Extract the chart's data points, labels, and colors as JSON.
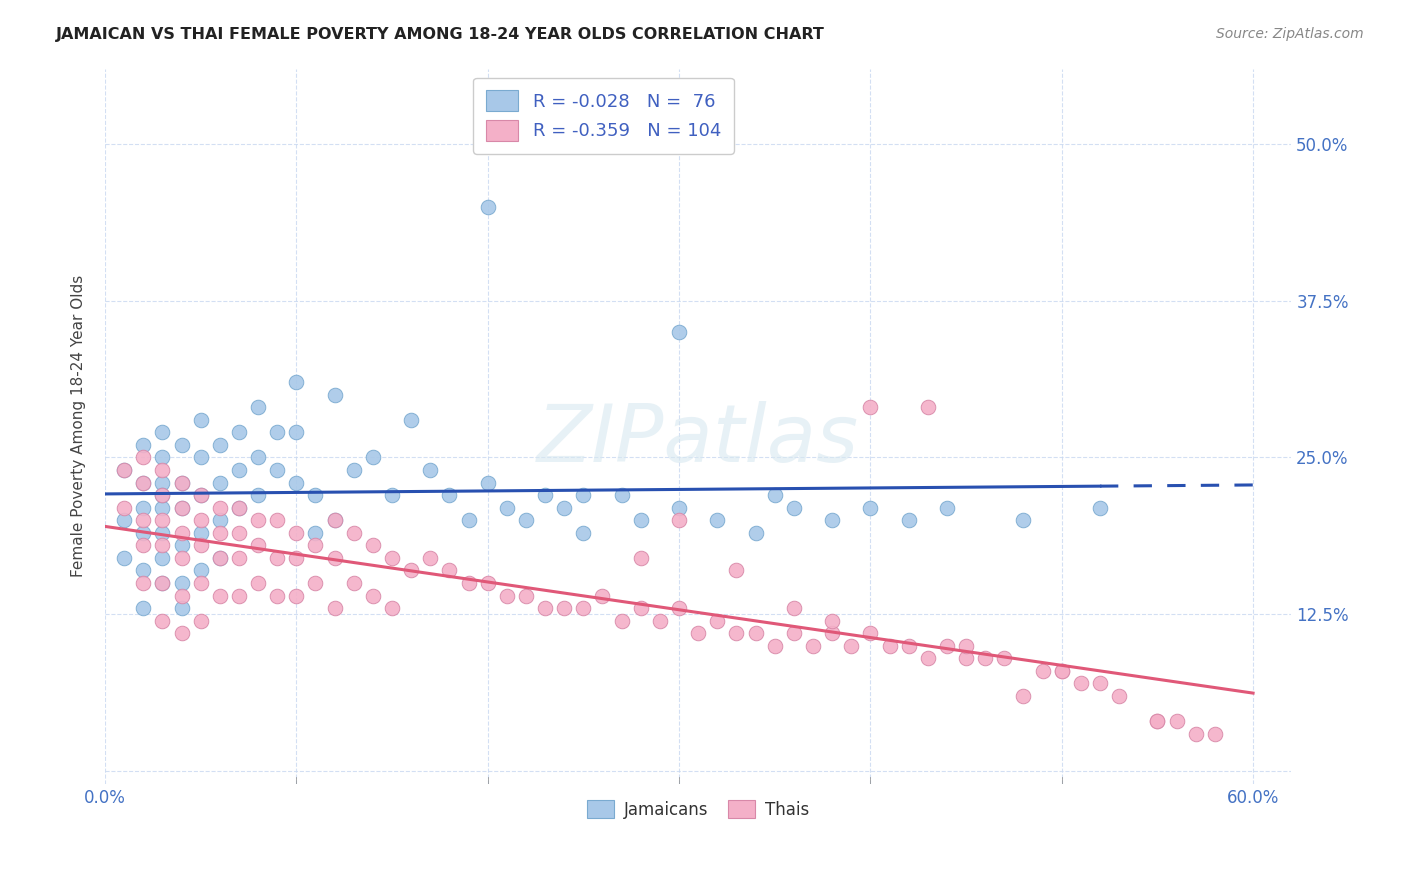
{
  "title": "JAMAICAN VS THAI FEMALE POVERTY AMONG 18-24 YEAR OLDS CORRELATION CHART",
  "source": "Source: ZipAtlas.com",
  "ylabel": "Female Poverty Among 18-24 Year Olds",
  "ytick_labels": [
    "",
    "12.5%",
    "25.0%",
    "37.5%",
    "50.0%"
  ],
  "ytick_values": [
    0.0,
    0.125,
    0.25,
    0.375,
    0.5
  ],
  "xtick_positions": [
    0.0,
    0.1,
    0.2,
    0.3,
    0.4,
    0.5,
    0.6
  ],
  "xtick_labels_show": [
    "0.0%",
    "",
    "",
    "",
    "",
    "",
    "60.0%"
  ],
  "xlim": [
    0.0,
    0.62
  ],
  "ylim": [
    -0.01,
    0.56
  ],
  "jamaican_color": "#a8c8e8",
  "jamaican_edge": "#7aaad0",
  "thai_color": "#f4b0c8",
  "thai_edge": "#d888a8",
  "trend_jamaican_color": "#2850b0",
  "trend_thai_color": "#e05878",
  "watermark": "ZIPatlas",
  "legend1_label": "R = -0.028   N =  76",
  "legend2_label": "R = -0.359   N = 104",
  "legend_bot1": "Jamaicans",
  "legend_bot2": "Thais",
  "jamaican_x": [
    0.01,
    0.01,
    0.01,
    0.02,
    0.02,
    0.02,
    0.02,
    0.02,
    0.02,
    0.03,
    0.03,
    0.03,
    0.03,
    0.03,
    0.03,
    0.03,
    0.03,
    0.04,
    0.04,
    0.04,
    0.04,
    0.04,
    0.04,
    0.05,
    0.05,
    0.05,
    0.05,
    0.05,
    0.06,
    0.06,
    0.06,
    0.06,
    0.07,
    0.07,
    0.07,
    0.08,
    0.08,
    0.08,
    0.09,
    0.09,
    0.1,
    0.1,
    0.1,
    0.11,
    0.11,
    0.12,
    0.12,
    0.13,
    0.14,
    0.15,
    0.16,
    0.17,
    0.18,
    0.19,
    0.2,
    0.21,
    0.22,
    0.23,
    0.24,
    0.25,
    0.27,
    0.28,
    0.3,
    0.32,
    0.34,
    0.36,
    0.38,
    0.4,
    0.42,
    0.44,
    0.48,
    0.52,
    0.3,
    0.35,
    0.2,
    0.25
  ],
  "jamaican_y": [
    0.24,
    0.2,
    0.17,
    0.26,
    0.23,
    0.21,
    0.19,
    0.16,
    0.13,
    0.27,
    0.25,
    0.23,
    0.21,
    0.19,
    0.17,
    0.15,
    0.22,
    0.26,
    0.23,
    0.21,
    0.18,
    0.15,
    0.13,
    0.28,
    0.25,
    0.22,
    0.19,
    0.16,
    0.26,
    0.23,
    0.2,
    0.17,
    0.27,
    0.24,
    0.21,
    0.29,
    0.25,
    0.22,
    0.27,
    0.24,
    0.31,
    0.27,
    0.23,
    0.22,
    0.19,
    0.3,
    0.2,
    0.24,
    0.25,
    0.22,
    0.28,
    0.24,
    0.22,
    0.2,
    0.23,
    0.21,
    0.2,
    0.22,
    0.21,
    0.19,
    0.22,
    0.2,
    0.21,
    0.2,
    0.19,
    0.21,
    0.2,
    0.21,
    0.2,
    0.21,
    0.2,
    0.21,
    0.35,
    0.22,
    0.45,
    0.22
  ],
  "thai_x": [
    0.01,
    0.01,
    0.02,
    0.02,
    0.02,
    0.02,
    0.02,
    0.03,
    0.03,
    0.03,
    0.03,
    0.03,
    0.03,
    0.04,
    0.04,
    0.04,
    0.04,
    0.04,
    0.04,
    0.05,
    0.05,
    0.05,
    0.05,
    0.05,
    0.06,
    0.06,
    0.06,
    0.06,
    0.07,
    0.07,
    0.07,
    0.07,
    0.08,
    0.08,
    0.08,
    0.09,
    0.09,
    0.09,
    0.1,
    0.1,
    0.1,
    0.11,
    0.11,
    0.12,
    0.12,
    0.12,
    0.13,
    0.13,
    0.14,
    0.14,
    0.15,
    0.15,
    0.16,
    0.17,
    0.18,
    0.19,
    0.2,
    0.21,
    0.22,
    0.23,
    0.24,
    0.25,
    0.26,
    0.27,
    0.28,
    0.29,
    0.3,
    0.31,
    0.32,
    0.33,
    0.34,
    0.35,
    0.36,
    0.37,
    0.38,
    0.39,
    0.4,
    0.41,
    0.42,
    0.43,
    0.44,
    0.45,
    0.46,
    0.47,
    0.49,
    0.5,
    0.51,
    0.52,
    0.53,
    0.55,
    0.56,
    0.57,
    0.58,
    0.4,
    0.33,
    0.3,
    0.36,
    0.43,
    0.5,
    0.55,
    0.28,
    0.45,
    0.38,
    0.48
  ],
  "thai_y": [
    0.24,
    0.21,
    0.25,
    0.23,
    0.2,
    0.18,
    0.15,
    0.24,
    0.22,
    0.2,
    0.18,
    0.15,
    0.12,
    0.23,
    0.21,
    0.19,
    0.17,
    0.14,
    0.11,
    0.22,
    0.2,
    0.18,
    0.15,
    0.12,
    0.21,
    0.19,
    0.17,
    0.14,
    0.21,
    0.19,
    0.17,
    0.14,
    0.2,
    0.18,
    0.15,
    0.2,
    0.17,
    0.14,
    0.19,
    0.17,
    0.14,
    0.18,
    0.15,
    0.2,
    0.17,
    0.13,
    0.19,
    0.15,
    0.18,
    0.14,
    0.17,
    0.13,
    0.16,
    0.17,
    0.16,
    0.15,
    0.15,
    0.14,
    0.14,
    0.13,
    0.13,
    0.13,
    0.14,
    0.12,
    0.13,
    0.12,
    0.13,
    0.11,
    0.12,
    0.11,
    0.11,
    0.1,
    0.11,
    0.1,
    0.11,
    0.1,
    0.11,
    0.1,
    0.1,
    0.09,
    0.1,
    0.09,
    0.09,
    0.09,
    0.08,
    0.08,
    0.07,
    0.07,
    0.06,
    0.04,
    0.04,
    0.03,
    0.03,
    0.29,
    0.16,
    0.2,
    0.13,
    0.29,
    0.08,
    0.04,
    0.17,
    0.1,
    0.12,
    0.06
  ]
}
